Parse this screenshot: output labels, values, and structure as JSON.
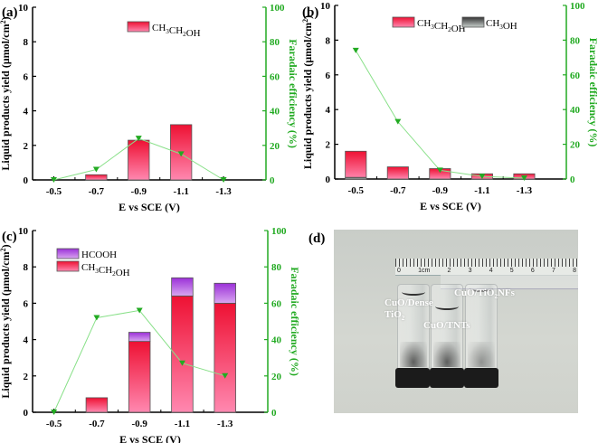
{
  "figure": {
    "panel_labels": [
      "(a)",
      "(b)",
      "(c)",
      "(d)"
    ]
  },
  "colors": {
    "ethanol_bar": "#f04870",
    "methanol_bar": "#9aa39f",
    "hcooh_bar": "#b060d8",
    "fe_line": "#88e088",
    "fe_marker": "#22aa22",
    "right_axis": "#22aa22"
  },
  "chart_data": [
    {
      "panel": "(a)",
      "type": "bar",
      "categories": [
        "-0.5",
        "-0.7",
        "-0.9",
        "-1.1",
        "-1.3"
      ],
      "series": [
        {
          "name": "CH3CH2OH",
          "values": [
            0,
            0.3,
            2.3,
            3.2,
            0
          ]
        }
      ],
      "line_series": [
        {
          "name": "Faradaic efficiency",
          "axis": "right",
          "values": [
            0,
            6,
            24,
            15,
            0
          ]
        }
      ],
      "title": "",
      "xlabel": "E vs SCE (V)",
      "ylabel": "Liquid products yield (μmol/cm²)",
      "y2label": "Faradaic efficiency (%)",
      "ylim": [
        0,
        10
      ],
      "y2lim": [
        0,
        100
      ],
      "yticks": [
        "0",
        "2",
        "4",
        "6",
        "8",
        "10"
      ],
      "y2ticks": [
        "0",
        "20",
        "40",
        "60",
        "80",
        "100"
      ],
      "legend": [
        "CH3CH2OH"
      ],
      "legend_position": "top-center",
      "grid": false
    },
    {
      "panel": "(b)",
      "type": "bar",
      "categories": [
        "-0.5",
        "-0.7",
        "-0.9",
        "-1.1",
        "-1.3"
      ],
      "series": [
        {
          "name": "CH3CH2OH",
          "values": [
            1.6,
            0.7,
            0.6,
            0.3,
            0.3
          ]
        },
        {
          "name": "CH3OH",
          "values": [
            0.1,
            0,
            0,
            0,
            0
          ]
        }
      ],
      "line_series": [
        {
          "name": "Faradaic efficiency",
          "axis": "right",
          "values": [
            74,
            33,
            5,
            1.5,
            0.5
          ]
        }
      ],
      "title": "",
      "xlabel": "E vs SCE (V)",
      "ylabel": "Liquid products yield (μmol/cm²)",
      "y2label": "Faradaic efficiency (%)",
      "ylim": [
        0,
        10
      ],
      "y2lim": [
        0,
        100
      ],
      "yticks": [
        "0",
        "2",
        "4",
        "6",
        "8",
        "10"
      ],
      "y2ticks": [
        "0",
        "20",
        "40",
        "60",
        "80",
        "100"
      ],
      "legend": [
        "CH3CH2OH",
        "CH3OH"
      ],
      "legend_position": "top-center",
      "grid": false
    },
    {
      "panel": "(c)",
      "type": "bar",
      "stacked": true,
      "categories": [
        "-0.5",
        "-0.7",
        "-0.9",
        "-1.1",
        "-1.3"
      ],
      "series": [
        {
          "name": "CH3CH2OH",
          "values": [
            0,
            0.8,
            3.9,
            6.4,
            6.0
          ]
        },
        {
          "name": "HCOOH",
          "values": [
            0,
            0,
            0.5,
            1.0,
            1.1
          ]
        }
      ],
      "line_series": [
        {
          "name": "Faradaic efficiency",
          "axis": "right",
          "values": [
            0,
            52,
            56,
            27,
            20
          ]
        }
      ],
      "title": "",
      "xlabel": "E vs SCE (V)",
      "ylabel": "Liquid products yield (μmol/cm²)",
      "y2label": "Faradaic efficiency (%)",
      "ylim": [
        0,
        10
      ],
      "y2lim": [
        0,
        100
      ],
      "yticks": [
        "0",
        "2",
        "4",
        "6",
        "8",
        "10"
      ],
      "y2ticks": [
        "0",
        "20",
        "40",
        "60",
        "80",
        "100"
      ],
      "legend": [
        "HCOOH",
        "CH3CH2OH"
      ],
      "legend_position": "top-left",
      "grid": false
    }
  ],
  "photo": {
    "panel": "(d)",
    "ruler_numbers": [
      "0",
      "1cm",
      "2",
      "3",
      "4",
      "5",
      "6",
      "7",
      "8"
    ],
    "labels": {
      "dense_line1": "CuO/Dense",
      "dense_line2": "TiO",
      "dense_sub": "2",
      "tnts": "CuO/TNTs",
      "nfs_pre": "CuO/TiO",
      "nfs_sub": "2",
      "nfs_post": "NFs"
    }
  }
}
